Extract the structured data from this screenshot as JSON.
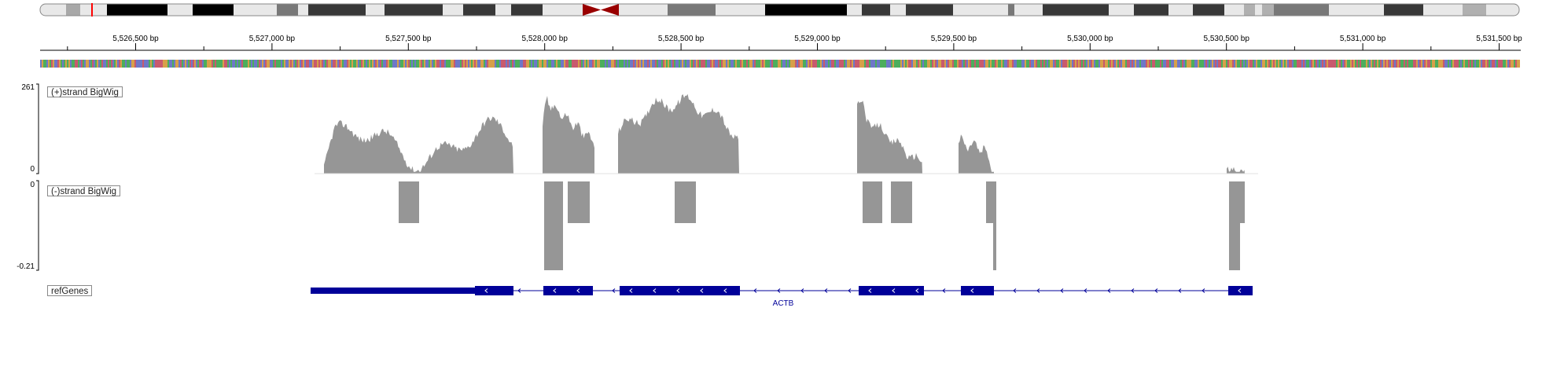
{
  "ruler": {
    "ticks": [
      "5,526,500 bp",
      "5,527,000 bp",
      "5,527,500 bp",
      "5,528,000 bp",
      "5,528,500 bp",
      "5,529,000 bp",
      "5,529,500 bp",
      "5,530,000 bp",
      "5,530,500 bp",
      "5,531,000 bp",
      "5,531,500 bp"
    ]
  },
  "tracks": {
    "plus": {
      "label": "(+)strand BigWig",
      "scale_max": "261",
      "scale_min": "0",
      "color": "#969696"
    },
    "minus": {
      "label": "(-)strand BigWig",
      "scale_max": "0",
      "scale_min": "-0.21",
      "color": "#969696"
    },
    "genes": {
      "label": "refGenes",
      "gene_name": "ACTB",
      "color": "#000099"
    }
  },
  "ideogram": {
    "centromere_color": "#990000",
    "current_view_color": "#ff0000"
  },
  "sequence": {
    "base_colors": {
      "A": "#4cae5d",
      "C": "#6e78c8",
      "G": "#d7a04a",
      "T": "#c85a6e"
    }
  }
}
